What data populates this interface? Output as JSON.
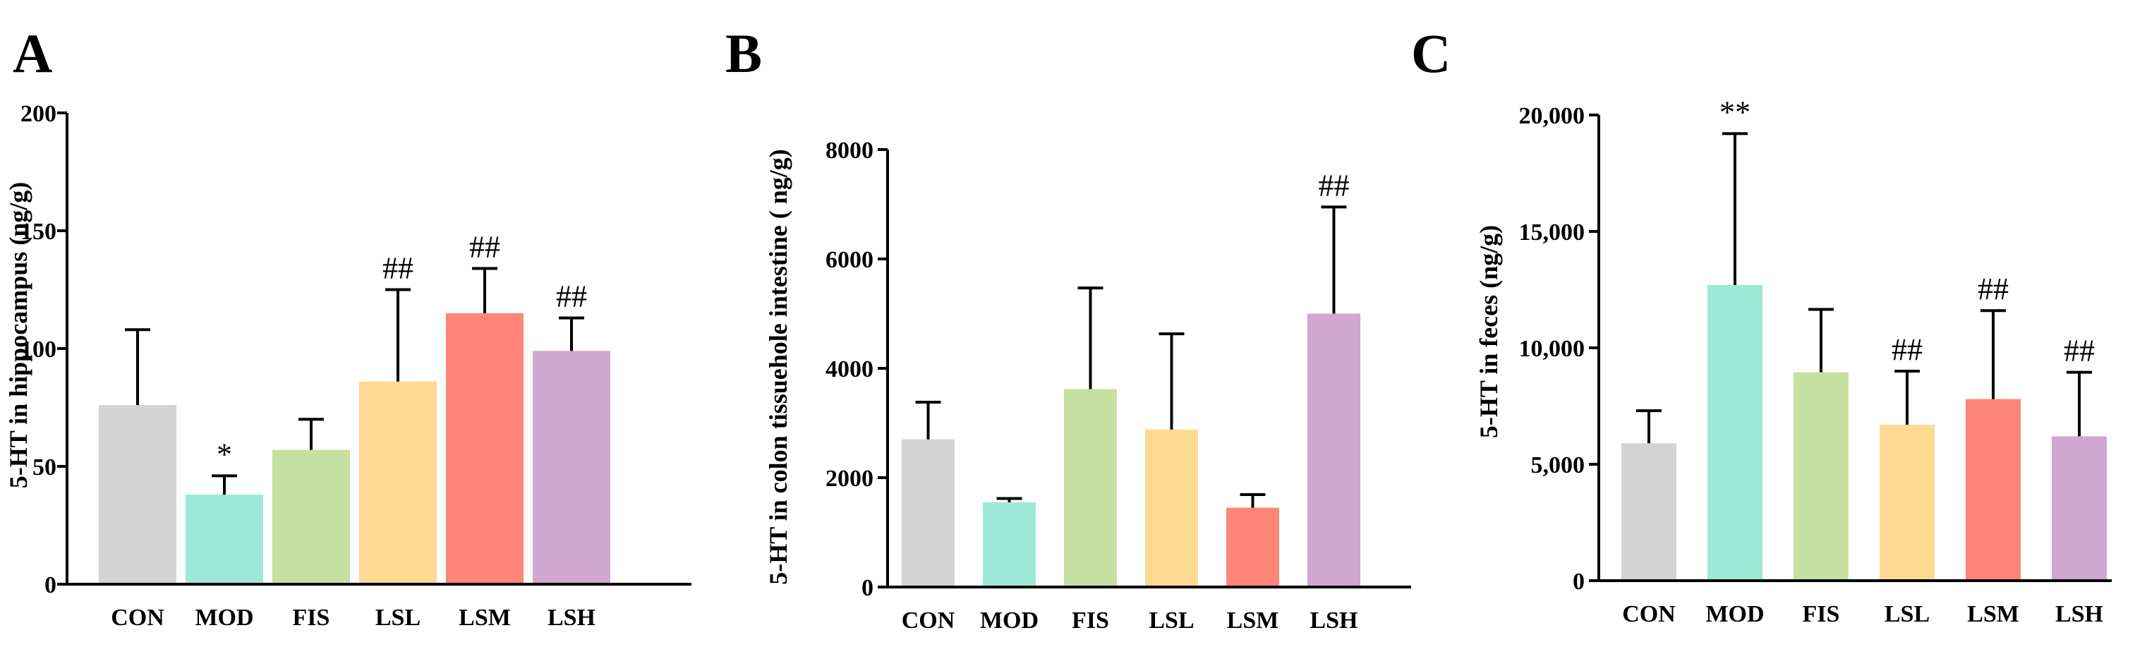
{
  "chart_data": [
    {
      "type": "bar",
      "panel_label": "A",
      "categories": [
        "CON",
        "MOD",
        "FIS",
        "LSL",
        "LSM",
        "LSH"
      ],
      "values": [
        76,
        38,
        57,
        86,
        115,
        99
      ],
      "errors": [
        32,
        8,
        13,
        39,
        19,
        14
      ],
      "annotations": [
        "",
        "*",
        "",
        "##",
        "##",
        "##"
      ],
      "ylabel": "5-HT in hippocampus (ng/g)",
      "ylim": [
        0,
        200
      ],
      "yticks": [
        0,
        50,
        100,
        150,
        200
      ],
      "ytick_labels": [
        "0",
        "50",
        "100",
        "150",
        "200"
      ],
      "colors": [
        "#d3d3d3",
        "#9fe8d6",
        "#c5e0a0",
        "#fdd991",
        "#fe8577",
        "#cfa7d0"
      ]
    },
    {
      "type": "bar",
      "panel_label": "B",
      "categories": [
        "CON",
        "MOD",
        "FIS",
        "LSL",
        "LSM",
        "LSH"
      ],
      "values": [
        2700,
        1550,
        3620,
        2880,
        1450,
        5000
      ],
      "errors": [
        680,
        70,
        1850,
        1750,
        240,
        1950
      ],
      "annotations": [
        "",
        "",
        "",
        "",
        "",
        "##"
      ],
      "ylabel": "5-HT in colon tissuehole intestine ( ng/g)",
      "ylim": [
        0,
        8000
      ],
      "yticks": [
        0,
        2000,
        4000,
        6000,
        8000
      ],
      "ytick_labels": [
        "0",
        "2000",
        "4000",
        "6000",
        "8000"
      ],
      "colors": [
        "#d3d3d3",
        "#9fe8d6",
        "#c5e0a0",
        "#fdd991",
        "#fe8577",
        "#cfa7d0"
      ]
    },
    {
      "type": "bar",
      "panel_label": "C",
      "categories": [
        "CON",
        "MOD",
        "FIS",
        "LSL",
        "LSM",
        "LSH"
      ],
      "values": [
        5900,
        12700,
        8950,
        6700,
        7800,
        6200
      ],
      "errors": [
        1400,
        6500,
        2700,
        2300,
        3800,
        2750
      ],
      "annotations": [
        "",
        "**",
        "",
        "##",
        "##",
        "##"
      ],
      "ylabel": "5-HT in feces (ng/g)",
      "ylim": [
        0,
        20000
      ],
      "yticks": [
        0,
        5000,
        10000,
        15000,
        20000
      ],
      "ytick_labels": [
        "0",
        "5,000",
        "10,000",
        "15,000",
        "20,000"
      ],
      "colors": [
        "#d3d3d3",
        "#9fe8d6",
        "#c5e0a0",
        "#fdd991",
        "#fe8577",
        "#cfa7d0"
      ],
      "error_colors": [
        "#000000",
        "#000000",
        "#000000",
        "#000000",
        "#1a2a4a",
        "#000000"
      ]
    }
  ]
}
